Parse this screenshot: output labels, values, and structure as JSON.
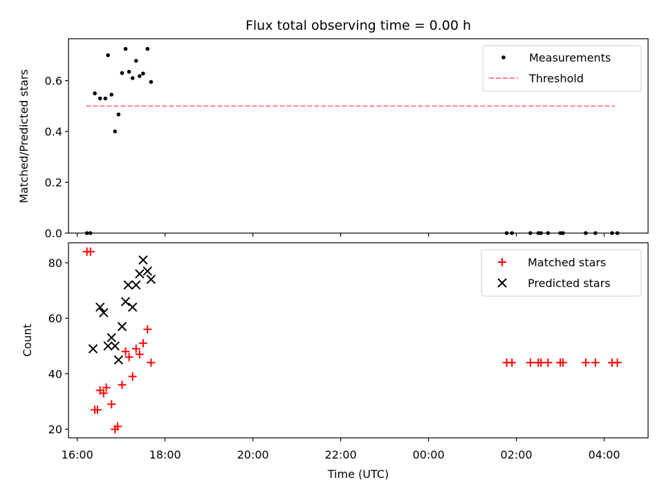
{
  "chart_data": [
    {
      "type": "scatter",
      "title": "Flux total observing time = 0.00 h",
      "xlabel": "",
      "ylabel": "Matched/Predicted stars",
      "xlim": [
        15.8,
        29.0
      ],
      "ylim": [
        0.0,
        0.765
      ],
      "yticks": [
        0.0,
        0.2,
        0.4,
        0.6
      ],
      "ytick_labels": [
        "0.0",
        "0.2",
        "0.4",
        "0.6"
      ],
      "grid": false,
      "legend": "top-right",
      "series": [
        {
          "name": "Measurements",
          "marker": "dot",
          "color": "#000000",
          "points": [
            [
              16.22,
              0.0
            ],
            [
              16.3,
              0.0
            ],
            [
              16.4,
              0.55
            ],
            [
              16.52,
              0.53
            ],
            [
              16.64,
              0.53
            ],
            [
              16.7,
              0.7
            ],
            [
              16.78,
              0.545
            ],
            [
              16.86,
              0.4
            ],
            [
              16.94,
              0.467
            ],
            [
              17.02,
              0.63
            ],
            [
              17.1,
              0.725
            ],
            [
              17.18,
              0.635
            ],
            [
              17.26,
              0.61
            ],
            [
              17.34,
              0.678
            ],
            [
              17.42,
              0.618
            ],
            [
              17.5,
              0.628
            ],
            [
              17.6,
              0.725
            ],
            [
              17.68,
              0.595
            ],
            [
              25.78,
              0.0
            ],
            [
              25.9,
              0.0
            ],
            [
              26.32,
              0.0
            ],
            [
              26.5,
              0.0
            ],
            [
              26.56,
              0.0
            ],
            [
              26.72,
              0.0
            ],
            [
              27.0,
              0.0
            ],
            [
              27.06,
              0.0
            ],
            [
              27.58,
              0.0
            ],
            [
              27.8,
              0.0
            ],
            [
              28.18,
              0.0
            ],
            [
              28.3,
              0.0
            ]
          ]
        },
        {
          "name": "Threshold",
          "style": "dashed-line",
          "color": "#ff7f7f",
          "x": [
            16.2,
            28.25
          ],
          "y": [
            0.5,
            0.5
          ]
        }
      ]
    },
    {
      "type": "scatter",
      "title": "",
      "xlabel": "Time (UTC)",
      "ylabel": "Count",
      "xlim": [
        15.8,
        29.0
      ],
      "ylim": [
        16.9,
        87.2
      ],
      "x_ticks": [
        16,
        18,
        20,
        22,
        24,
        26,
        28
      ],
      "x_tick_labels": [
        "16:00",
        "18:00",
        "20:00",
        "22:00",
        "00:00",
        "02:00",
        "04:00"
      ],
      "yticks": [
        20,
        40,
        60,
        80
      ],
      "ytick_labels": [
        "20",
        "40",
        "60",
        "80"
      ],
      "grid": false,
      "legend": "top-right",
      "series": [
        {
          "name": "Matched stars",
          "marker": "plus",
          "color": "#ff0000",
          "points": [
            [
              16.22,
              84
            ],
            [
              16.3,
              84
            ],
            [
              16.4,
              27
            ],
            [
              16.46,
              27
            ],
            [
              16.52,
              34
            ],
            [
              16.6,
              33
            ],
            [
              16.66,
              35
            ],
            [
              16.78,
              29
            ],
            [
              16.86,
              20
            ],
            [
              16.92,
              21
            ],
            [
              17.02,
              36
            ],
            [
              17.1,
              48
            ],
            [
              17.18,
              46
            ],
            [
              17.26,
              39
            ],
            [
              17.34,
              49
            ],
            [
              17.42,
              47
            ],
            [
              17.5,
              51
            ],
            [
              17.6,
              56
            ],
            [
              17.68,
              44
            ],
            [
              25.78,
              44
            ],
            [
              25.9,
              44
            ],
            [
              26.32,
              44
            ],
            [
              26.5,
              44
            ],
            [
              26.56,
              44
            ],
            [
              26.72,
              44
            ],
            [
              27.0,
              44
            ],
            [
              27.06,
              44
            ],
            [
              27.58,
              44
            ],
            [
              27.8,
              44
            ],
            [
              28.18,
              44
            ],
            [
              28.3,
              44
            ]
          ]
        },
        {
          "name": "Predicted stars",
          "marker": "x",
          "color": "#000000",
          "points": [
            [
              16.36,
              49
            ],
            [
              16.52,
              64
            ],
            [
              16.6,
              62
            ],
            [
              16.7,
              50
            ],
            [
              16.78,
              53
            ],
            [
              16.86,
              50
            ],
            [
              16.94,
              45
            ],
            [
              17.02,
              57
            ],
            [
              17.1,
              66
            ],
            [
              17.16,
              72
            ],
            [
              17.26,
              64
            ],
            [
              17.34,
              72
            ],
            [
              17.42,
              76
            ],
            [
              17.5,
              81
            ],
            [
              17.6,
              77
            ],
            [
              17.68,
              74
            ]
          ]
        }
      ]
    }
  ]
}
